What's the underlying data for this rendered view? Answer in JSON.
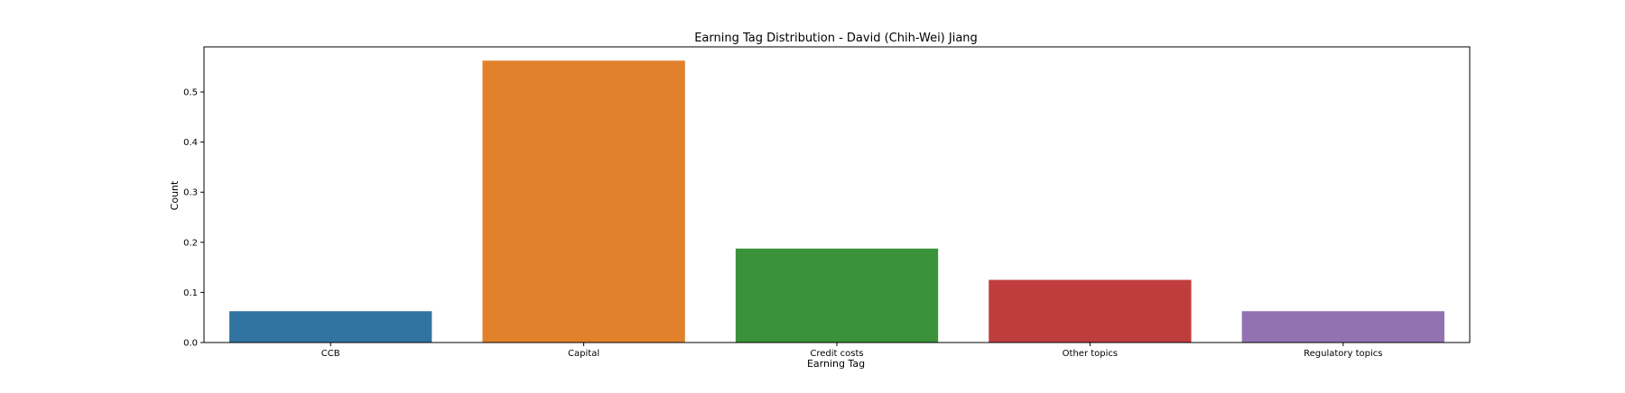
{
  "chart_data": {
    "type": "bar",
    "title": "Earning Tag Distribution - David (Chih-Wei) Jiang",
    "xlabel": "Earning Tag",
    "ylabel": "Count",
    "categories": [
      "CCB",
      "Capital",
      "Credit costs",
      "Other topics",
      "Regulatory topics"
    ],
    "values": [
      0.0625,
      0.5625,
      0.1875,
      0.125,
      0.0625
    ],
    "colors": [
      "#3274a1",
      "#e1812c",
      "#3a923a",
      "#c03d3e",
      "#9372b2"
    ],
    "ylim": [
      0,
      0.59
    ],
    "yticks": [
      0.0,
      0.1,
      0.2,
      0.3,
      0.4,
      0.5
    ],
    "ytick_labels": [
      "0.0",
      "0.1",
      "0.2",
      "0.3",
      "0.4",
      "0.5"
    ],
    "grid": false,
    "legend": "none"
  }
}
